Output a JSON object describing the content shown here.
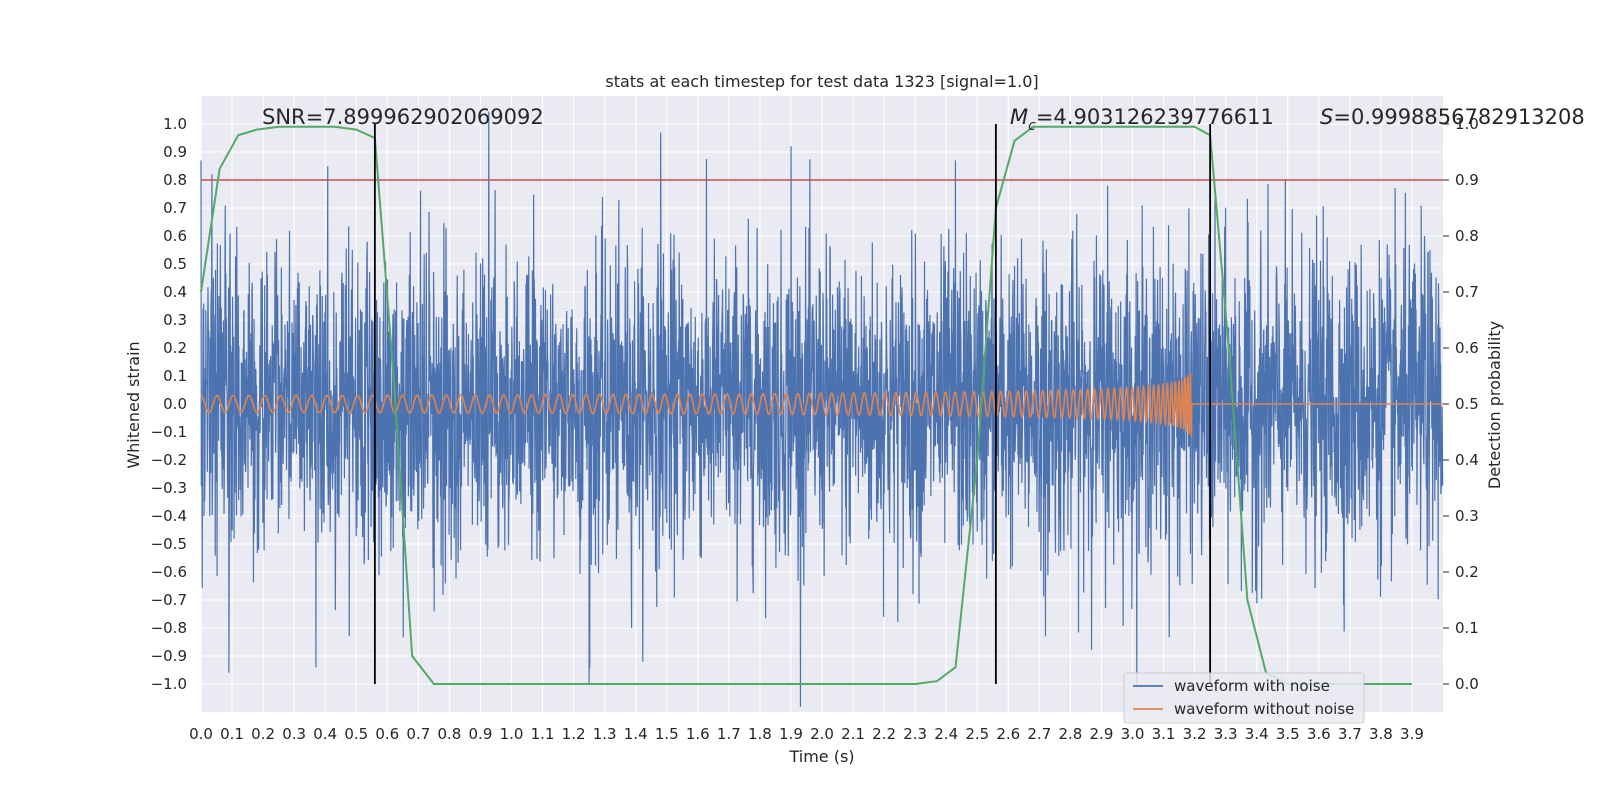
{
  "chart_data": {
    "type": "line",
    "title": "stats at each timestep for test data 1323 [signal=1.0]",
    "xlabel": "Time (s)",
    "ylabel": "Whitened strain",
    "y2label": "Detection probability",
    "xlim": [
      0.0,
      4.0
    ],
    "ylim": [
      -1.1,
      1.1
    ],
    "y2lim": [
      -0.05,
      1.05
    ],
    "x_ticks": [
      "0.0",
      "0.1",
      "0.2",
      "0.3",
      "0.4",
      "0.5",
      "0.6",
      "0.7",
      "0.8",
      "0.9",
      "1.0",
      "1.1",
      "1.2",
      "1.3",
      "1.4",
      "1.5",
      "1.6",
      "1.7",
      "1.8",
      "1.9",
      "2.0",
      "2.1",
      "2.2",
      "2.3",
      "2.4",
      "2.5",
      "2.6",
      "2.7",
      "2.8",
      "2.9",
      "3.0",
      "3.1",
      "3.2",
      "3.3",
      "3.4",
      "3.5",
      "3.6",
      "3.7",
      "3.8",
      "3.9"
    ],
    "y_ticks": [
      "1.0",
      "0.9",
      "0.8",
      "0.7",
      "0.6",
      "0.5",
      "0.4",
      "0.3",
      "0.2",
      "0.1",
      "0.0",
      "−0.1",
      "−0.2",
      "−0.3",
      "−0.4",
      "−0.5",
      "−0.6",
      "−0.7",
      "−0.8",
      "−0.9",
      "−1.0"
    ],
    "y2_ticks": [
      "1.0",
      "0.9",
      "0.8",
      "0.7",
      "0.6",
      "0.5",
      "0.4",
      "0.3",
      "0.2",
      "0.1",
      "0.0"
    ],
    "grid": true,
    "legend_position": "bottom-right",
    "annotations": {
      "snr": "SNR=7.899962902069092",
      "mc_symbol": "M",
      "mc_sub": "c",
      "mc_value": "=4.903126239776611",
      "s_symbol": "S",
      "s_value": "=0.9998856782913208"
    },
    "series": [
      {
        "name": "waveform with noise",
        "color": "#4c72b0",
        "kind": "noise",
        "amplitude_std": 0.27,
        "notable_points": [
          [
            0.0,
            0.87
          ],
          [
            0.09,
            -0.96
          ],
          [
            0.37,
            -0.94
          ],
          [
            0.56,
            0.9
          ],
          [
            1.25,
            -1.0
          ],
          [
            1.48,
            0.97
          ],
          [
            1.9,
            0.92
          ],
          [
            2.43,
            0.87
          ],
          [
            2.72,
            -0.83
          ],
          [
            2.92,
            0.78
          ],
          [
            3.94,
            0.6
          ]
        ]
      },
      {
        "name": "waveform without noise",
        "color": "#dd8452",
        "kind": "chirp",
        "start_amplitude": 0.03,
        "peak_amplitude": 0.19,
        "merger_time": 3.19,
        "post_merger_level": 0.0
      },
      {
        "name": "detection probability",
        "color": "#55a868",
        "axis": "right",
        "x": [
          0.0,
          0.06,
          0.12,
          0.18,
          0.25,
          0.31,
          0.37,
          0.43,
          0.5,
          0.56,
          0.62,
          0.68,
          0.75,
          0.81,
          0.87,
          0.93,
          1.0,
          1.2,
          1.5,
          2.0,
          2.3,
          2.37,
          2.43,
          2.5,
          2.56,
          2.62,
          2.68,
          2.75,
          2.8,
          3.0,
          3.2,
          3.25,
          3.31,
          3.37,
          3.43,
          3.5,
          3.7,
          3.9
        ],
        "y": [
          0.7,
          0.92,
          0.98,
          0.99,
          0.995,
          0.995,
          0.995,
          0.995,
          0.99,
          0.975,
          0.55,
          0.05,
          0.0,
          0.0,
          0.0,
          0.0,
          0.0,
          0.0,
          0.0,
          0.0,
          0.0,
          0.005,
          0.03,
          0.4,
          0.85,
          0.97,
          0.995,
          0.995,
          0.995,
          0.995,
          0.995,
          0.98,
          0.6,
          0.15,
          0.02,
          0.0,
          0.0,
          0.0
        ]
      }
    ],
    "threshold": {
      "color": "#c44e52",
      "value": 0.9
    },
    "vertical_lines": {
      "color": "#000000",
      "x": [
        0.56,
        2.56,
        3.25
      ]
    }
  }
}
